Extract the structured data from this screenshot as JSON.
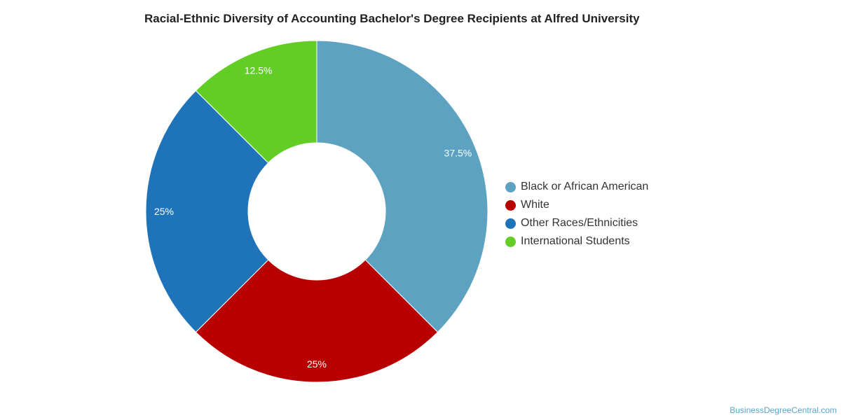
{
  "chart_data": {
    "type": "pie",
    "title": "Racial-Ethnic Diversity of Accounting Bachelor's Degree Recipients at Alfred University",
    "categories": [
      "Black or African American",
      "White",
      "Other Races/Ethnicities",
      "International Students"
    ],
    "values": [
      37.5,
      25,
      25,
      12.5
    ],
    "value_labels": [
      "37.5%",
      "25%",
      "25%",
      "12.5%"
    ],
    "colors": [
      "#5da3c1",
      "#b90000",
      "#1f73b9",
      "#62cd24"
    ],
    "donut": true,
    "legend_position": "right"
  },
  "watermark": "BusinessDegreeCentral.com"
}
